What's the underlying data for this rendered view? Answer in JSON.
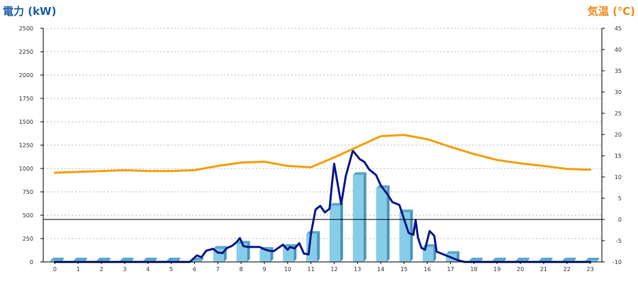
{
  "chart_data": {
    "type": "bar+line",
    "left_axis_title": "電力 (kW)",
    "right_axis_title": "気温 (℃)",
    "colors": {
      "left_title": "#1f5fa5",
      "right_title": "#f08a1a",
      "bar_front": "#87cdea",
      "bar_top": "#5aa9cc",
      "bar_side": "#4c96bd",
      "demand_line": "#0a1a8c",
      "temp_line": "#f5a00e",
      "grid": "#bbbbbb"
    },
    "left_axis": {
      "min": 0,
      "max": 2500,
      "ticks": [
        "0",
        "250",
        "500",
        "750",
        "1000",
        "1250",
        "1500",
        "1750",
        "2000",
        "2250",
        "2500"
      ]
    },
    "right_axis": {
      "min": -10,
      "max": 45,
      "ticks": [
        "-10",
        "-5",
        "0",
        "5",
        "10",
        "15",
        "20",
        "25",
        "30",
        "35",
        "40",
        "45"
      ]
    },
    "x_axis": {
      "categories": [
        "0",
        "1",
        "2",
        "3",
        "4",
        "5",
        "6",
        "7",
        "8",
        "9",
        "10",
        "11",
        "12",
        "13",
        "14",
        "15",
        "16",
        "17",
        "18",
        "19",
        "20",
        "21",
        "22",
        "23"
      ]
    },
    "grid": true,
    "series": [
      {
        "kind": "bar",
        "axis": "left",
        "values": [
          15,
          15,
          15,
          15,
          15,
          15,
          15,
          140,
          195,
          130,
          160,
          300,
          600,
          930,
          790,
          530,
          160,
          85,
          15,
          15,
          15,
          15,
          15,
          15
        ]
      },
      {
        "kind": "line",
        "axis": "left",
        "color_key": "demand_line",
        "x": [
          0,
          1,
          2,
          3,
          4,
          5,
          5.8,
          6.1,
          6.3,
          6.5,
          6.8,
          7.0,
          7.2,
          7.4,
          7.6,
          7.8,
          7.95,
          8.1,
          8.3,
          8.6,
          8.8,
          9.0,
          9.2,
          9.4,
          9.6,
          9.8,
          10.0,
          10.1,
          10.3,
          10.5,
          10.7,
          10.9,
          11.0,
          11.2,
          11.4,
          11.6,
          11.8,
          11.9,
          12.0,
          12.3,
          12.5,
          12.8,
          12.9,
          13.1,
          13.3,
          13.5,
          13.8,
          14.0,
          14.3,
          14.5,
          14.8,
          15.0,
          15.2,
          15.4,
          15.5,
          15.6,
          15.75,
          15.9,
          16.1,
          16.3,
          16.4,
          16.6,
          16.8,
          17.0,
          17.3,
          17.6,
          18,
          19,
          20,
          21,
          22,
          23
        ],
        "y": [
          0,
          0,
          0,
          0,
          0,
          0,
          0,
          70,
          50,
          120,
          140,
          100,
          95,
          150,
          170,
          210,
          255,
          170,
          160,
          160,
          160,
          135,
          120,
          115,
          150,
          185,
          130,
          160,
          145,
          200,
          90,
          80,
          300,
          560,
          600,
          530,
          570,
          820,
          1050,
          620,
          920,
          1190,
          1160,
          1100,
          1070,
          990,
          930,
          820,
          720,
          640,
          610,
          460,
          310,
          290,
          450,
          260,
          150,
          130,
          330,
          280,
          110,
          90,
          70,
          50,
          20,
          0,
          0,
          0,
          0,
          0,
          0,
          0
        ]
      },
      {
        "kind": "line",
        "axis": "right",
        "color_key": "temp_line",
        "x": [
          0,
          1,
          2,
          3,
          4,
          5,
          6,
          7,
          8,
          9,
          10,
          11,
          12,
          13,
          14,
          15,
          16,
          17,
          18,
          19,
          20,
          21,
          22,
          23
        ],
        "y": [
          11,
          11.2,
          11.4,
          11.6,
          11.4,
          11.4,
          11.6,
          12.6,
          13.4,
          13.6,
          12.6,
          12.3,
          14.6,
          17.1,
          19.6,
          19.9,
          18.9,
          17.1,
          15.4,
          14,
          13.2,
          12.6,
          11.9,
          11.7
        ]
      }
    ]
  }
}
